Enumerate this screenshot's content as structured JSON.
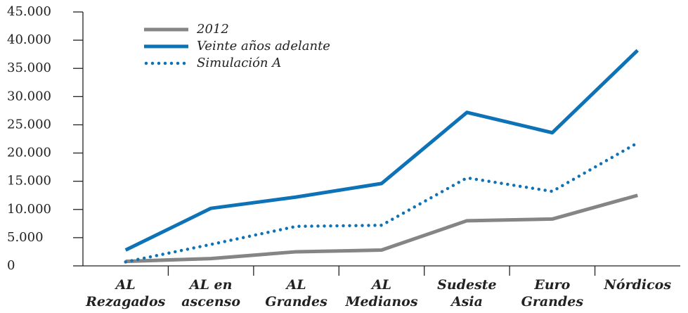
{
  "chart_data": {
    "type": "line",
    "categories": [
      "AL\nRezagados",
      "AL en\nascenso",
      "AL\nGrandes",
      "AL\nMedianos",
      "Sudeste\nAsia",
      "Euro\nGrandes",
      "Nórdicos"
    ],
    "series": [
      {
        "name": "2012",
        "color": "#858585",
        "style": "solid",
        "values": [
          800,
          1300,
          2500,
          2800,
          8000,
          8300,
          12500
        ]
      },
      {
        "name": "Veinte años adelante",
        "color": "#0e72b6",
        "style": "solid",
        "values": [
          2800,
          10200,
          12200,
          14600,
          27200,
          23600,
          38200
        ]
      },
      {
        "name": "Simulación A",
        "color": "#0e72b6",
        "style": "dotted",
        "values": [
          700,
          3800,
          7000,
          7200,
          15600,
          13200,
          21800
        ]
      }
    ],
    "ylim": [
      0,
      45000
    ],
    "yticks": [
      0,
      {
        "value": 5000,
        "label": "5.000"
      },
      {
        "value": 10000,
        "label": "10.000"
      },
      {
        "value": 15000,
        "label": "15.000"
      },
      {
        "value": 20000,
        "label": "20.000"
      },
      {
        "value": 25000,
        "label": "25.000"
      },
      {
        "value": 30000,
        "label": "30.000"
      },
      {
        "value": 35000,
        "label": "35.000"
      },
      {
        "value": 40000,
        "label": "40.000"
      },
      {
        "value": 45000,
        "label": "45.000"
      }
    ],
    "legend": "upper left"
  }
}
